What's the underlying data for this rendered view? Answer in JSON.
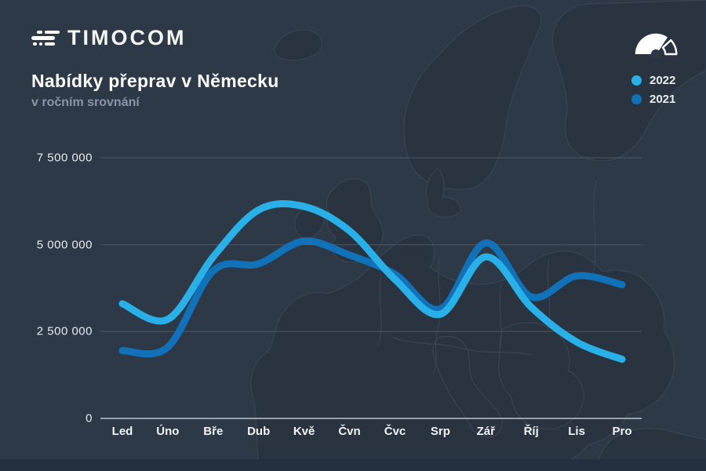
{
  "header": {
    "brand": "TIMOCOM",
    "title": "Nabídky přeprav v Německu",
    "subtitle": "v ročním srovnání"
  },
  "icons": {
    "logo": "truck-bars-icon",
    "gauge": "speedometer-icon"
  },
  "legend": {
    "items": [
      {
        "label": "2022",
        "color": "#29b0e8"
      },
      {
        "label": "2021",
        "color": "#1172ba"
      }
    ]
  },
  "chart_data": {
    "type": "line",
    "title": "Nabídky přeprav v Německu",
    "subtitle": "v ročním srovnání",
    "categories": [
      "Led",
      "Úno",
      "Bře",
      "Dub",
      "Kvě",
      "Čvn",
      "Čvc",
      "Srp",
      "Zář",
      "Říj",
      "Lis",
      "Pro"
    ],
    "series": [
      {
        "name": "2022",
        "color": "#29b0e8",
        "values": [
          3300000,
          2850000,
          4650000,
          6000000,
          6100000,
          5400000,
          4000000,
          3000000,
          4650000,
          3200000,
          2200000,
          1700000
        ]
      },
      {
        "name": "2021",
        "color": "#1172ba",
        "values": [
          1950000,
          2050000,
          4250000,
          4450000,
          5100000,
          4700000,
          4150000,
          3150000,
          5050000,
          3500000,
          4100000,
          3850000
        ]
      }
    ],
    "y_ticks": [
      {
        "label": "7 500 000",
        "value": 7500000
      },
      {
        "label": "5 000 000",
        "value": 5000000
      },
      {
        "label": "2 500 000",
        "value": 2500000
      },
      {
        "label": "0",
        "value": 0
      }
    ],
    "ylim": [
      0,
      7500000
    ],
    "xlabel": "",
    "ylabel": "",
    "grid": "horizontal",
    "legend_position": "top-right"
  },
  "colors": {
    "background": "#2e3948",
    "map_land": "#2a3440",
    "map_border": "#3b4656",
    "gridline": "#4d5866",
    "axis_line": "#98a0ab",
    "accent_2022": "#29b0e8",
    "accent_2021": "#1172ba"
  }
}
